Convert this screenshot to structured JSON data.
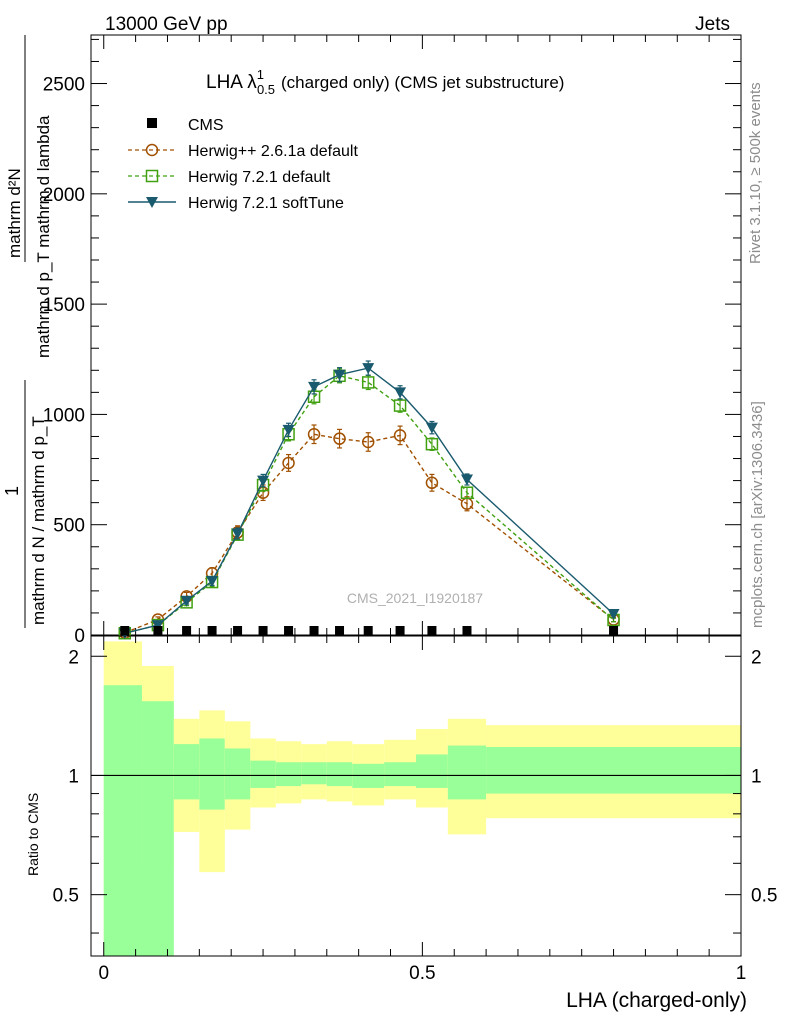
{
  "header": {
    "left": "13000 GeV pp",
    "right": "Jets"
  },
  "side": {
    "rivet": "Rivet 3.1.10, ≥ 500k events",
    "mcplots": "mcplots.cern.ch [arXiv:1306.3436]"
  },
  "colors": {
    "cms": "#000000",
    "herwig261": "#a05000",
    "herwig721": "#40a010",
    "soft": "#1a5a6e",
    "band_green": "#99ff99",
    "band_yellow": "#ffff99"
  },
  "chart_data": [
    {
      "type": "line",
      "title": "LHA λ^1_0.5 (charged only) (CMS jet substructure)",
      "title_main": "LHA λ",
      "title_sup": "1",
      "title_sub": "0.5",
      "title_rest": "(charged only) (CMS jet substructure)",
      "ylabel_num": "mathrm d²N",
      "ylabel_num2": "mathrm d p_T mathrm d lambda",
      "ylabel_pre": "1",
      "ylabel_den": "mathrm d N / mathrm d p_T",
      "ylabel_den2": "mathrm d p_T mathrm d lambda",
      "xlabel": "LHA (charged-only)",
      "xlim": [
        -0.02,
        1.0
      ],
      "ylim": [
        0,
        2720
      ],
      "yticks": [
        0,
        500,
        1000,
        1500,
        2000,
        2500
      ],
      "ytick_labels": [
        "0",
        "500",
        "1000",
        "1500",
        "2000",
        "2500"
      ],
      "watermark": "CMS_2021_I1920187",
      "legend": [
        "CMS",
        "Herwig++ 2.6.1a default",
        "Herwig 7.2.1 default",
        "Herwig 7.2.1 softTune"
      ],
      "x": [
        0.033,
        0.085,
        0.13,
        0.17,
        0.21,
        0.25,
        0.29,
        0.33,
        0.37,
        0.415,
        0.465,
        0.515,
        0.57,
        0.8
      ],
      "series": [
        {
          "name": "CMS",
          "values": [
            0,
            0,
            0,
            0,
            0,
            0,
            0,
            0,
            0,
            0,
            0,
            0,
            0,
            0
          ]
        },
        {
          "name": "Herwig++ 2.6.1a default",
          "values": [
            10,
            70,
            175,
            280,
            465,
            645,
            780,
            910,
            890,
            875,
            905,
            690,
            595,
            70
          ],
          "errors": [
            5,
            12,
            18,
            25,
            30,
            35,
            38,
            42,
            42,
            42,
            42,
            38,
            32,
            10
          ]
        },
        {
          "name": "Herwig 7.2.1 default",
          "values": [
            8,
            45,
            148,
            240,
            455,
            680,
            910,
            1080,
            1175,
            1145,
            1040,
            865,
            645,
            68
          ],
          "errors": [
            5,
            10,
            15,
            20,
            25,
            28,
            30,
            32,
            32,
            32,
            30,
            28,
            25,
            8
          ]
        },
        {
          "name": "Herwig 7.2.1 softTune",
          "values": [
            8,
            45,
            155,
            245,
            460,
            700,
            930,
            1125,
            1180,
            1210,
            1100,
            940,
            705,
            95
          ],
          "errors": [
            5,
            10,
            15,
            20,
            25,
            28,
            30,
            32,
            32,
            32,
            30,
            28,
            25,
            8
          ]
        }
      ]
    },
    {
      "type": "area",
      "title": "",
      "ylabel": "Ratio to CMS",
      "xlabel": "LHA (charged-only)",
      "xlim": [
        -0.02,
        1.0
      ],
      "ylim": [
        0.35,
        2.25
      ],
      "yticks": [
        0.5,
        1,
        2
      ],
      "ytick_labels": [
        "0.5",
        "1",
        "2"
      ],
      "xticks": [
        0,
        0.5,
        1
      ],
      "xtick_labels": [
        "0",
        "0.5",
        "1"
      ],
      "bin_edges": [
        0,
        0.06,
        0.11,
        0.15,
        0.19,
        0.23,
        0.27,
        0.31,
        0.35,
        0.39,
        0.44,
        0.49,
        0.54,
        0.6,
        1.0
      ],
      "inner_band_low": [
        0.35,
        0.35,
        0.87,
        0.82,
        0.87,
        0.93,
        0.94,
        0.95,
        0.94,
        0.93,
        0.94,
        0.93,
        0.87,
        0.9
      ],
      "inner_band_high": [
        1.69,
        1.54,
        1.2,
        1.24,
        1.17,
        1.09,
        1.08,
        1.08,
        1.08,
        1.07,
        1.08,
        1.13,
        1.19,
        1.18
      ],
      "outer_band_low": [
        0.35,
        0.58,
        0.72,
        0.57,
        0.73,
        0.83,
        0.85,
        0.87,
        0.86,
        0.84,
        0.87,
        0.83,
        0.71,
        0.78
      ],
      "outer_band_high": [
        2.18,
        1.89,
        1.39,
        1.46,
        1.37,
        1.24,
        1.22,
        1.2,
        1.22,
        1.2,
        1.23,
        1.31,
        1.39,
        1.34
      ],
      "reference_line": 1
    }
  ]
}
